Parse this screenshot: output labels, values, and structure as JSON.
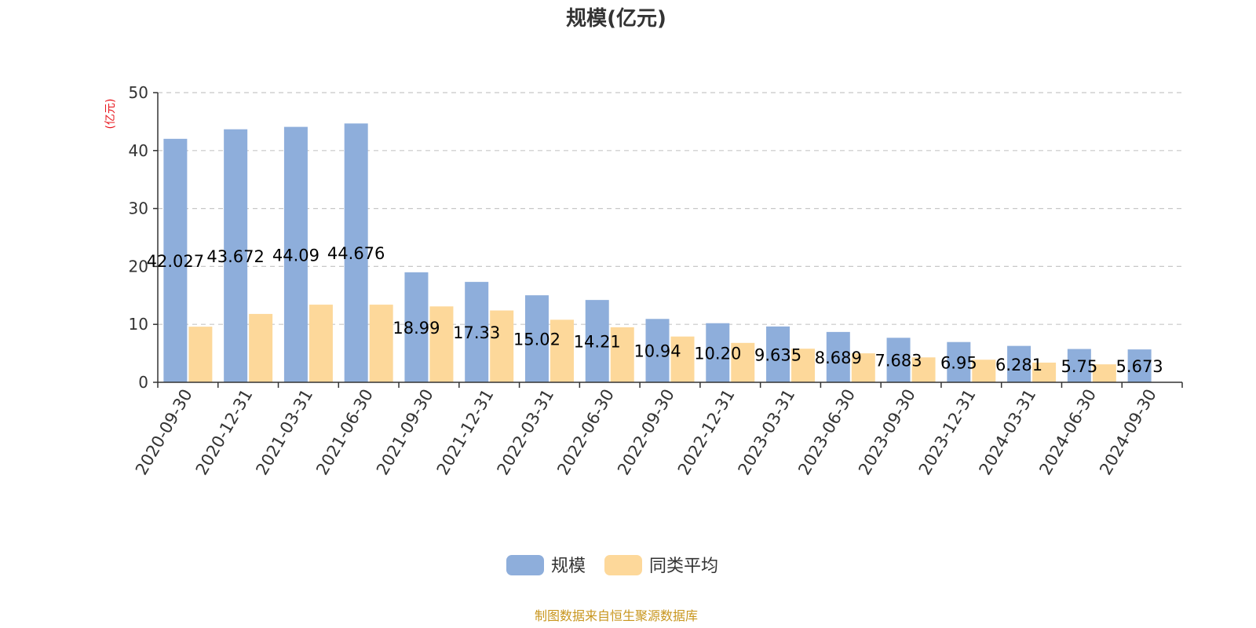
{
  "chart_data": {
    "type": "bar",
    "title": "规模(亿元)",
    "ylabel": "(亿元)",
    "xlabel": "",
    "ylim": [
      0,
      50
    ],
    "yticks": [
      0,
      10,
      20,
      30,
      40,
      50
    ],
    "grid": true,
    "legend_position": "bottom-center",
    "categories": [
      "2020-09-30",
      "2020-12-31",
      "2021-03-31",
      "2021-06-30",
      "2021-09-30",
      "2021-12-31",
      "2022-03-31",
      "2022-06-30",
      "2022-09-30",
      "2022-12-31",
      "2023-03-31",
      "2023-06-30",
      "2023-09-30",
      "2023-12-31",
      "2024-03-31",
      "2024-06-30",
      "2024-09-30"
    ],
    "series": [
      {
        "name": "规模",
        "color": "#8eaedb",
        "values": [
          42.027,
          43.672,
          44.09,
          44.676,
          18.99,
          17.33,
          15.02,
          14.21,
          10.94,
          10.2,
          9.635,
          8.689,
          7.683,
          6.95,
          6.281,
          5.75,
          5.673
        ],
        "labels": [
          "42.027",
          "43.672",
          "44.09",
          "44.676",
          "18.99",
          "17.33",
          "15.02",
          "14.21",
          "10.94",
          "10.20",
          "9.635",
          "8.689",
          "7.683",
          "6.95",
          "6.281",
          "5.75",
          "5.673"
        ]
      },
      {
        "name": "同类平均",
        "color": "#fdd89a",
        "values": [
          9.6,
          11.8,
          13.4,
          13.4,
          13.1,
          12.4,
          10.8,
          9.5,
          7.9,
          6.8,
          5.8,
          5.0,
          4.3,
          3.9,
          3.4,
          3.1,
          null
        ]
      }
    ],
    "source_note": "制图数据来自恒生聚源数据库"
  }
}
